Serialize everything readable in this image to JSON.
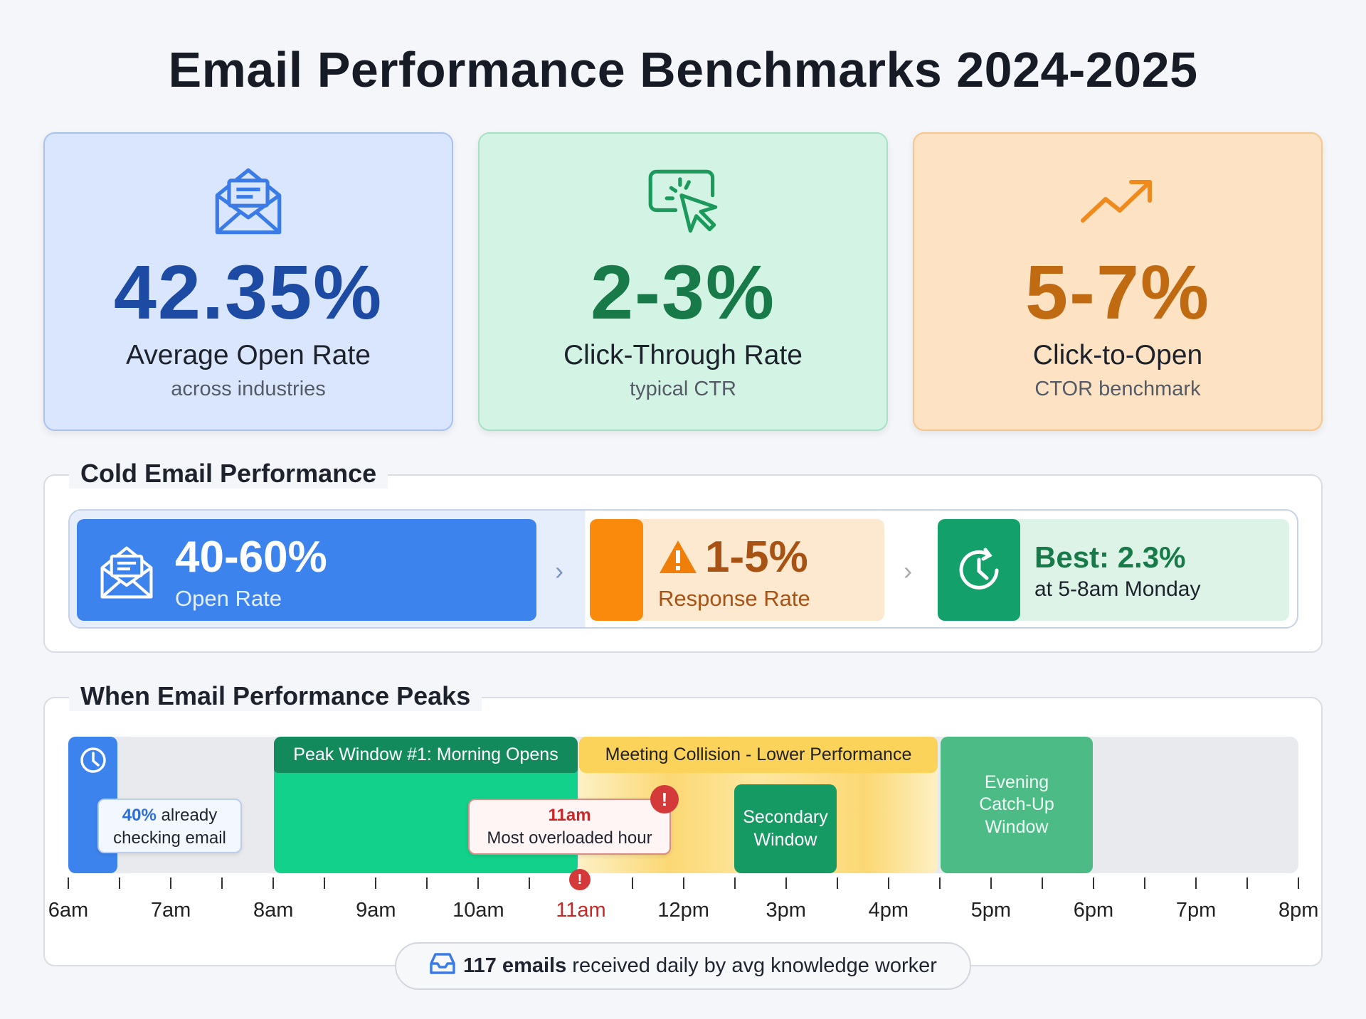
{
  "title": "Email Performance Benchmarks 2024-2025",
  "cards": [
    {
      "icon": "envelope-open-icon",
      "value": "42.35%",
      "label": "Average Open Rate",
      "sub": "across industries",
      "color": "#1d4aa3"
    },
    {
      "icon": "cursor-click-icon",
      "value": "2-3%",
      "label": "Click-Through Rate",
      "sub": "typical CTR",
      "color": "#177a48"
    },
    {
      "icon": "trending-up-icon",
      "value": "5-7%",
      "label": "Click-to-Open",
      "sub": "CTOR benchmark",
      "color": "#c06a12"
    }
  ],
  "cold": {
    "title": "Cold Email Performance",
    "open": {
      "value": "40-60%",
      "label": "Open Rate"
    },
    "response": {
      "value": "1-5%",
      "label": "Response Rate"
    },
    "best": {
      "value": "Best: 2.3%",
      "label": "at 5-8am Monday"
    }
  },
  "timeline": {
    "title": "When Email Performance Peaks",
    "ticks": [
      "6am",
      "7am",
      "8am",
      "9am",
      "10am",
      "11am",
      "12pm",
      "3pm",
      "4pm",
      "5pm",
      "6pm",
      "7pm",
      "8pm"
    ],
    "highlight_tick": "11am",
    "peak1": "Peak Window #1: Morning Opens",
    "collision": "Meeting Collision - Lower Performance",
    "secondary": "Secondary Window",
    "evening": "Evening Catch-Up Window",
    "early_pct": "40%",
    "early_text": "already checking email",
    "overload_time": "11am",
    "overload_text": "Most overloaded hour"
  },
  "footer": {
    "count": "117 emails",
    "text": "received daily by avg knowledge worker"
  }
}
